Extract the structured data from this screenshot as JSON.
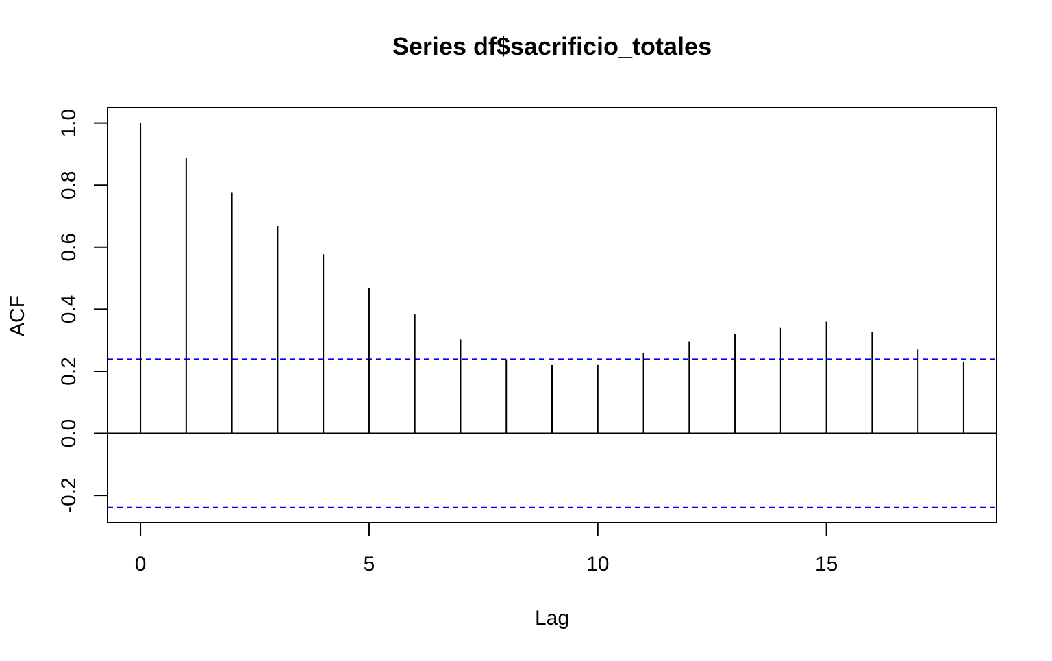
{
  "chart_data": {
    "type": "bar",
    "title": "Series  df$sacrificio_totales",
    "xlabel": "Lag",
    "ylabel": "ACF",
    "x": [
      0,
      1,
      2,
      3,
      4,
      5,
      6,
      7,
      8,
      9,
      10,
      11,
      12,
      13,
      14,
      15,
      16,
      17,
      18
    ],
    "values": [
      1.0,
      0.888,
      0.775,
      0.668,
      0.577,
      0.469,
      0.383,
      0.303,
      0.239,
      0.22,
      0.22,
      0.258,
      0.296,
      0.32,
      0.34,
      0.36,
      0.326,
      0.27,
      0.231
    ],
    "confidence_bound": 0.239,
    "xlim": [
      -0.72,
      18.72
    ],
    "ylim": [
      -0.288,
      1.05
    ],
    "xticks": [
      0,
      5,
      10,
      15
    ],
    "yticks": [
      -0.2,
      0.0,
      0.2,
      0.4,
      0.6,
      0.8,
      1.0
    ],
    "xtick_labels": [
      "0",
      "5",
      "10",
      "15"
    ],
    "ytick_labels": [
      "-0.2",
      "0.0",
      "0.2",
      "0.4",
      "0.6",
      "0.8",
      "1.0"
    ],
    "grid": false,
    "bar_color": "#000000",
    "zero_line_color": "#000000",
    "bound_line_color": "#0000FF"
  }
}
